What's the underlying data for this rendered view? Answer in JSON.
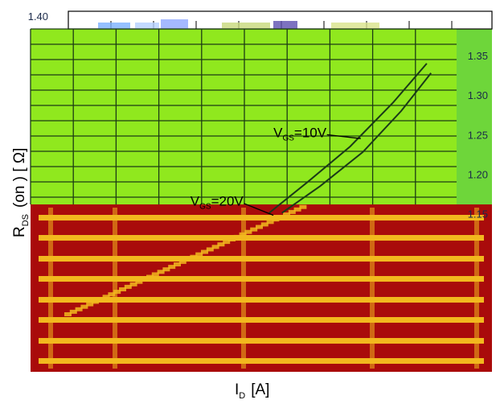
{
  "chart_data": {
    "type": "line",
    "title": "",
    "xlabel": "I",
    "xlabel_sub": "D",
    "xlabel_unit": "[A]",
    "ylabel": "R",
    "ylabel_sub": "DS",
    "ylabel_rest": "(on )  [ Ω]",
    "ylim": [
      0.95,
      1.4
    ],
    "xlim": [
      0,
      10
    ],
    "y_tick_labels": [
      "1.40",
      "1.35",
      "1.30",
      "1.25",
      "1.20",
      "1.15"
    ],
    "y_ticks": [
      1.4,
      1.35,
      1.3,
      1.25,
      1.2,
      1.15
    ],
    "grid": true,
    "series": [
      {
        "x": [
          5.6,
          6.5,
          7.5,
          8.5,
          9.3
        ],
        "y": [
          1.151,
          1.19,
          1.235,
          1.29,
          1.34
        ]
      },
      {
        "x": [
          5.9,
          6.8,
          7.8,
          8.7,
          9.4
        ],
        "y": [
          1.151,
          1.185,
          1.228,
          1.28,
          1.328
        ]
      }
    ],
    "annotations": [
      {
        "id": "vgs10",
        "main": "V",
        "sub": "GS",
        "rest": "=10V",
        "x": 5.7,
        "y": 1.247,
        "arrow_to": [
          7.75,
          1.245
        ]
      },
      {
        "id": "vgs20",
        "main": "V",
        "sub": "GS",
        "rest": "=20V",
        "x": 3.75,
        "y": 1.16,
        "arrow_to": [
          5.7,
          1.148
        ]
      }
    ],
    "colors": {
      "plot_fill": "#90e81e",
      "right_strip": "#6ed63a",
      "grid": "#1c3c14",
      "lower_band": "#a90b0b",
      "stripe": "#f2b81e",
      "curve": "#1a3a18",
      "top_band": "#ffffff",
      "tick_text": "#1b2a4a"
    }
  }
}
